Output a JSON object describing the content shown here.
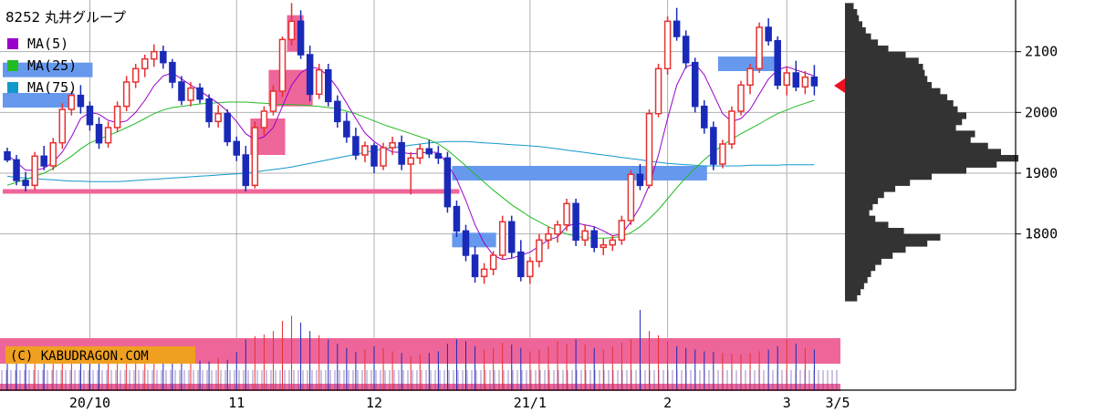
{
  "chart_data": {
    "type": "candlestick",
    "title": "8252 丸井グループ",
    "legend": [
      {
        "label": "MA(5)",
        "color": "#9900cc"
      },
      {
        "label": "MA(25)",
        "color": "#22bb22"
      },
      {
        "label": "MA(75)",
        "color": "#1199cc"
      }
    ],
    "legend_position": "top-left",
    "y_ticks": [
      1800,
      1900,
      2000,
      2100
    ],
    "ylim": [
      1645,
      2185
    ],
    "x_ticks": [
      {
        "label": "20/10",
        "session": 9
      },
      {
        "label": "11",
        "session": 25
      },
      {
        "label": "12",
        "session": 40
      },
      {
        "label": "21/1",
        "session": 57
      },
      {
        "label": "2",
        "session": 72
      },
      {
        "label": "3",
        "session": 85
      },
      {
        "label": "3/5",
        "session": 89
      }
    ],
    "current_price": 2044,
    "volume_rise_color": "#e83030",
    "volume_fall_color": "#1a2ab8",
    "watermark": "(C) KABUDRAGON.COM",
    "colors": {
      "up": "#e83030",
      "down": "#1a2ab8",
      "grid": "#b0b0b0",
      "profile": "#333333",
      "resistance_blue": "#6699ee",
      "support_pink": "#ee6699",
      "volume_band": "#ee6699",
      "marker": "#ee1122"
    },
    "ohlc": [
      [
        1935,
        1942,
        1918,
        1922
      ],
      [
        1922,
        1930,
        1880,
        1888
      ],
      [
        1888,
        1902,
        1870,
        1880
      ],
      [
        1880,
        1935,
        1872,
        1928
      ],
      [
        1928,
        1945,
        1905,
        1912
      ],
      [
        1912,
        1958,
        1905,
        1950
      ],
      [
        1950,
        2015,
        1940,
        2005
      ],
      [
        2005,
        2035,
        1995,
        2028
      ],
      [
        2028,
        2045,
        1998,
        2010
      ],
      [
        2010,
        2018,
        1970,
        1980
      ],
      [
        1980,
        1992,
        1940,
        1950
      ],
      [
        1950,
        1985,
        1942,
        1975
      ],
      [
        1975,
        2018,
        1968,
        2010
      ],
      [
        2010,
        2060,
        2002,
        2050
      ],
      [
        2050,
        2080,
        2040,
        2072
      ],
      [
        2072,
        2095,
        2058,
        2088
      ],
      [
        2088,
        2112,
        2075,
        2100
      ],
      [
        2100,
        2110,
        2072,
        2082
      ],
      [
        2082,
        2088,
        2040,
        2050
      ],
      [
        2050,
        2060,
        2012,
        2020
      ],
      [
        2020,
        2050,
        2010,
        2040
      ],
      [
        2040,
        2048,
        2015,
        2022
      ],
      [
        2022,
        2030,
        1975,
        1985
      ],
      [
        1985,
        2012,
        1975,
        1998
      ],
      [
        1998,
        2005,
        1945,
        1952
      ],
      [
        1952,
        1960,
        1920,
        1930
      ],
      [
        1930,
        1945,
        1870,
        1880
      ],
      [
        1880,
        1985,
        1875,
        1975
      ],
      [
        1975,
        2010,
        1962,
        2002
      ],
      [
        2002,
        2045,
        1995,
        2035
      ],
      [
        2035,
        2125,
        2025,
        2120
      ],
      [
        2120,
        2180,
        2110,
        2150
      ],
      [
        2150,
        2168,
        2088,
        2095
      ],
      [
        2095,
        2110,
        2018,
        2030
      ],
      [
        2030,
        2080,
        2022,
        2070
      ],
      [
        2070,
        2080,
        2010,
        2018
      ],
      [
        2018,
        2028,
        1975,
        1985
      ],
      [
        1985,
        2000,
        1950,
        1960
      ],
      [
        1960,
        1975,
        1922,
        1930
      ],
      [
        1930,
        1952,
        1918,
        1945
      ],
      [
        1945,
        1950,
        1900,
        1912
      ],
      [
        1912,
        1950,
        1905,
        1942
      ],
      [
        1942,
        1960,
        1930,
        1950
      ],
      [
        1950,
        1962,
        1905,
        1915
      ],
      [
        1915,
        1935,
        1865,
        1925
      ],
      [
        1925,
        1948,
        1915,
        1940
      ],
      [
        1940,
        1955,
        1925,
        1932
      ],
      [
        1932,
        1945,
        1915,
        1925
      ],
      [
        1925,
        1935,
        1835,
        1845
      ],
      [
        1845,
        1855,
        1795,
        1805
      ],
      [
        1805,
        1815,
        1755,
        1765
      ],
      [
        1765,
        1780,
        1720,
        1730
      ],
      [
        1730,
        1752,
        1718,
        1742
      ],
      [
        1742,
        1772,
        1732,
        1765
      ],
      [
        1765,
        1830,
        1758,
        1820
      ],
      [
        1820,
        1830,
        1760,
        1770
      ],
      [
        1770,
        1790,
        1722,
        1730
      ],
      [
        1730,
        1762,
        1718,
        1755
      ],
      [
        1755,
        1800,
        1745,
        1790
      ],
      [
        1790,
        1812,
        1775,
        1800
      ],
      [
        1800,
        1822,
        1786,
        1815
      ],
      [
        1815,
        1858,
        1805,
        1850
      ],
      [
        1850,
        1858,
        1780,
        1790
      ],
      [
        1790,
        1815,
        1780,
        1805
      ],
      [
        1805,
        1812,
        1770,
        1778
      ],
      [
        1778,
        1792,
        1765,
        1782
      ],
      [
        1782,
        1798,
        1772,
        1790
      ],
      [
        1790,
        1830,
        1782,
        1822
      ],
      [
        1822,
        1905,
        1815,
        1898
      ],
      [
        1898,
        1915,
        1872,
        1880
      ],
      [
        1880,
        2005,
        1875,
        1998
      ],
      [
        1998,
        2080,
        1992,
        2072
      ],
      [
        2072,
        2158,
        2062,
        2150
      ],
      [
        2150,
        2172,
        2118,
        2125
      ],
      [
        2125,
        2135,
        2072,
        2082
      ],
      [
        2082,
        2090,
        2000,
        2010
      ],
      [
        2010,
        2020,
        1965,
        1975
      ],
      [
        1975,
        1985,
        1905,
        1915
      ],
      [
        1915,
        1955,
        1908,
        1948
      ],
      [
        1948,
        2010,
        1940,
        2002
      ],
      [
        2002,
        2052,
        1995,
        2045
      ],
      [
        2045,
        2080,
        2030,
        2072
      ],
      [
        2072,
        2148,
        2065,
        2140
      ],
      [
        2140,
        2155,
        2110,
        2118
      ],
      [
        2118,
        2125,
        2038,
        2045
      ],
      [
        2045,
        2075,
        2028,
        2065
      ],
      [
        2065,
        2085,
        2035,
        2042
      ],
      [
        2042,
        2068,
        2030,
        2058
      ],
      [
        2058,
        2078,
        2028,
        2044
      ]
    ],
    "ma5": [
      1930,
      1918,
      1905,
      1905,
      1908,
      1918,
      1935,
      1960,
      1990,
      2000,
      1997,
      1987,
      1983,
      1986,
      2000,
      2020,
      2044,
      2060,
      2065,
      2055,
      2045,
      2036,
      2025,
      2015,
      2002,
      1985,
      1965,
      1955,
      1960,
      1975,
      2010,
      2045,
      2065,
      2075,
      2072,
      2060,
      2040,
      2015,
      1990,
      1966,
      1952,
      1942,
      1935,
      1934,
      1932,
      1933,
      1935,
      1934,
      1915,
      1890,
      1855,
      1815,
      1785,
      1765,
      1758,
      1760,
      1765,
      1770,
      1780,
      1790,
      1795,
      1812,
      1818,
      1815,
      1812,
      1805,
      1797,
      1800,
      1820,
      1845,
      1880,
      1930,
      1990,
      2045,
      2075,
      2080,
      2062,
      2030,
      1998,
      1985,
      1990,
      2005,
      2030,
      2055,
      2070,
      2075,
      2070,
      2065,
      2060
    ],
    "ma25": [
      1880,
      1885,
      1890,
      1895,
      1900,
      1908,
      1918,
      1928,
      1940,
      1950,
      1956,
      1962,
      1968,
      1975,
      1982,
      1990,
      1998,
      2004,
      2008,
      2010,
      2012,
      2014,
      2015,
      2016,
      2017,
      2017,
      2017,
      2016,
      2015,
      2014,
      2013,
      2013,
      2012,
      2011,
      2010,
      2008,
      2006,
      2002,
      1998,
      1992,
      1986,
      1980,
      1975,
      1970,
      1965,
      1960,
      1955,
      1948,
      1938,
      1925,
      1912,
      1898,
      1885,
      1872,
      1860,
      1848,
      1838,
      1828,
      1820,
      1812,
      1806,
      1800,
      1796,
      1794,
      1793,
      1793,
      1794,
      1796,
      1802,
      1812,
      1825,
      1840,
      1858,
      1876,
      1893,
      1908,
      1922,
      1935,
      1946,
      1956,
      1965,
      1973,
      1981,
      1990,
      1998,
      2004,
      2010,
      2015,
      2020
    ],
    "ma75": [
      1895,
      1893,
      1892,
      1891,
      1890,
      1889,
      1888,
      1887,
      1887,
      1886,
      1886,
      1886,
      1886,
      1887,
      1888,
      1889,
      1890,
      1891,
      1892,
      1893,
      1894,
      1895,
      1896,
      1897,
      1898,
      1899,
      1900,
      1902,
      1904,
      1906,
      1908,
      1910,
      1913,
      1916,
      1919,
      1922,
      1925,
      1928,
      1931,
      1934,
      1937,
      1940,
      1942,
      1944,
      1946,
      1948,
      1950,
      1951,
      1952,
      1952,
      1952,
      1951,
      1950,
      1949,
      1948,
      1947,
      1946,
      1945,
      1944,
      1942,
      1940,
      1938,
      1936,
      1934,
      1932,
      1930,
      1928,
      1926,
      1924,
      1922,
      1920,
      1918,
      1916,
      1915,
      1914,
      1913,
      1912,
      1912,
      1912,
      1912,
      1912,
      1913,
      1913,
      1913,
      1913,
      1914,
      1914,
      1914,
      1914
    ],
    "volume": [
      40,
      38,
      35,
      42,
      36,
      44,
      46,
      40,
      38,
      37,
      35,
      36,
      40,
      44,
      46,
      50,
      48,
      42,
      40,
      38,
      36,
      35,
      34,
      38,
      36,
      45,
      60,
      64,
      66,
      70,
      82,
      88,
      80,
      70,
      65,
      60,
      55,
      50,
      45,
      48,
      52,
      50,
      46,
      44,
      40,
      42,
      44,
      46,
      55,
      60,
      58,
      52,
      48,
      50,
      56,
      54,
      50,
      46,
      48,
      52,
      58,
      55,
      60,
      54,
      50,
      48,
      52,
      56,
      60,
      95,
      70,
      65,
      58,
      52,
      50,
      48,
      46,
      45,
      44,
      43,
      42,
      44,
      46,
      48,
      52,
      60,
      55,
      50,
      48
    ],
    "volume_profile": [
      [
        2180,
        10
      ],
      [
        2170,
        14
      ],
      [
        2160,
        16
      ],
      [
        2150,
        20
      ],
      [
        2140,
        24
      ],
      [
        2130,
        30
      ],
      [
        2120,
        38
      ],
      [
        2110,
        50
      ],
      [
        2100,
        70
      ],
      [
        2090,
        85
      ],
      [
        2080,
        90
      ],
      [
        2070,
        92
      ],
      [
        2060,
        95
      ],
      [
        2050,
        100
      ],
      [
        2040,
        110
      ],
      [
        2030,
        118
      ],
      [
        2020,
        125
      ],
      [
        2010,
        130
      ],
      [
        2000,
        140
      ],
      [
        1990,
        135
      ],
      [
        1980,
        128
      ],
      [
        1970,
        150
      ],
      [
        1960,
        145
      ],
      [
        1950,
        165
      ],
      [
        1940,
        180
      ],
      [
        1930,
        200
      ],
      [
        1920,
        175
      ],
      [
        1910,
        140
      ],
      [
        1900,
        100
      ],
      [
        1890,
        75
      ],
      [
        1880,
        58
      ],
      [
        1870,
        45
      ],
      [
        1860,
        38
      ],
      [
        1850,
        32
      ],
      [
        1840,
        28
      ],
      [
        1830,
        35
      ],
      [
        1820,
        50
      ],
      [
        1810,
        68
      ],
      [
        1800,
        110
      ],
      [
        1790,
        95
      ],
      [
        1780,
        70
      ],
      [
        1770,
        55
      ],
      [
        1760,
        42
      ],
      [
        1750,
        35
      ],
      [
        1740,
        30
      ],
      [
        1730,
        26
      ],
      [
        1720,
        22
      ],
      [
        1710,
        18
      ],
      [
        1700,
        14
      ]
    ],
    "bands": [
      {
        "type": "resistance",
        "from": 0,
        "to": 9,
        "price": 2070
      },
      {
        "type": "resistance",
        "from": 0,
        "to": 7,
        "price": 2020
      },
      {
        "type": "resistance",
        "from": 49,
        "to": 76,
        "price": 1900
      },
      {
        "type": "resistance",
        "from": 78,
        "to": 84,
        "price": 2080
      },
      {
        "type": "resistance",
        "from": 49,
        "to": 53,
        "price": 1790
      },
      {
        "type": "support",
        "from": 0,
        "to": 49,
        "price": 1870
      },
      {
        "type": "support",
        "from": 29,
        "to": 33,
        "price": 2040
      },
      {
        "type": "support",
        "from": 27,
        "to": 30,
        "price": 1960
      },
      {
        "type": "support",
        "from": 31,
        "to": 32,
        "price": 2130
      }
    ]
  }
}
